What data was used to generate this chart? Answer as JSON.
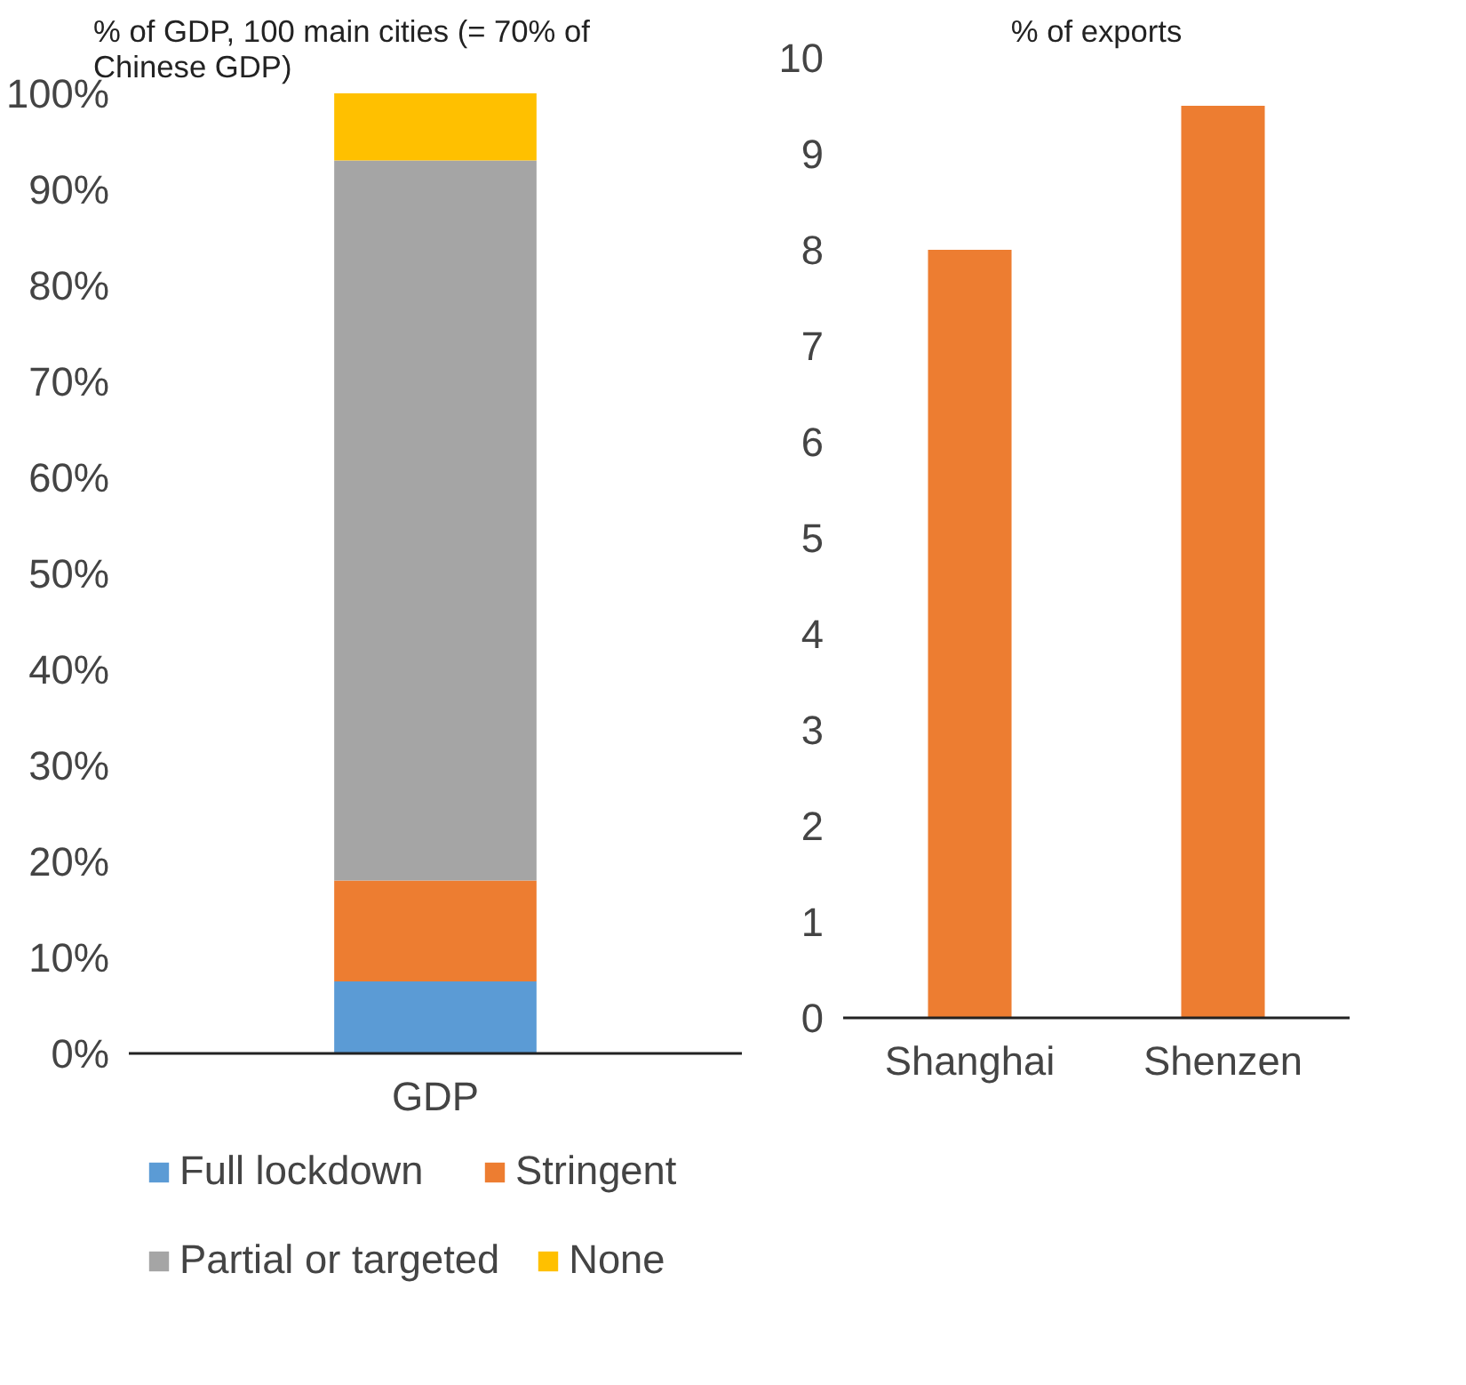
{
  "chart_data": [
    {
      "type": "bar",
      "title": "% of GDP, 100 main cities (= 70% of Chinese GDP)",
      "categories": [
        "GDP"
      ],
      "stacked": true,
      "series": [
        {
          "name": "Full lockdown",
          "color": "#5b9bd5",
          "values": [
            7.5
          ]
        },
        {
          "name": "Stringent",
          "color": "#ed7d31",
          "values": [
            10.5
          ]
        },
        {
          "name": "Partial or targeted",
          "color": "#a5a5a5",
          "values": [
            75
          ]
        },
        {
          "name": "None",
          "color": "#ffc000",
          "values": [
            7
          ]
        }
      ],
      "ylim": [
        0,
        100
      ],
      "yticks": [
        {
          "value": 0,
          "label": "0%"
        },
        {
          "value": 10,
          "label": "10%"
        },
        {
          "value": 20,
          "label": "20%"
        },
        {
          "value": 30,
          "label": "30%"
        },
        {
          "value": 40,
          "label": "40%"
        },
        {
          "value": 50,
          "label": "50%"
        },
        {
          "value": 60,
          "label": "60%"
        },
        {
          "value": 70,
          "label": "70%"
        },
        {
          "value": 80,
          "label": "80%"
        },
        {
          "value": 90,
          "label": "90%"
        },
        {
          "value": 100,
          "label": "100%"
        }
      ],
      "legend": "bottom"
    },
    {
      "type": "bar",
      "title": "% of exports",
      "categories": [
        "Shanghai",
        "Shenzen"
      ],
      "series": [
        {
          "color": "#ed7d31",
          "values": [
            8,
            9.5
          ]
        }
      ],
      "ylim": [
        0,
        10
      ],
      "yticks": [
        0,
        1,
        2,
        3,
        4,
        5,
        6,
        7,
        8,
        9,
        10
      ]
    }
  ]
}
